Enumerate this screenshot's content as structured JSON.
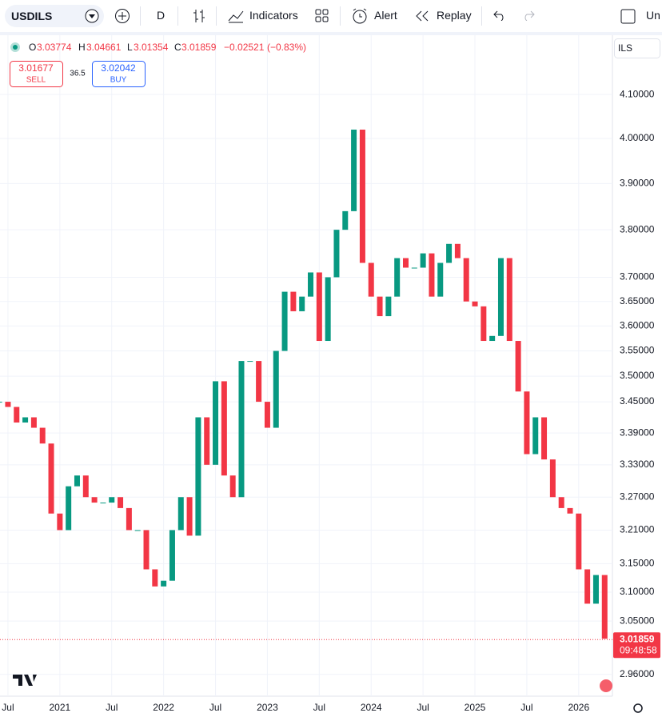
{
  "toolbar": {
    "symbol": "USDILS",
    "interval": "D",
    "indicators": "Indicators",
    "alert": "Alert",
    "replay": "Replay",
    "account": "Un"
  },
  "legend": {
    "open_label": "O",
    "open": 3.03774,
    "high_label": "H",
    "high": 3.04661,
    "low_label": "L",
    "low": 3.01354,
    "close_label": "C",
    "close": 3.01859,
    "change": "−0.02521",
    "change_pct": "(−0.83%)",
    "sell": "3.01677",
    "sell_label": "SELL",
    "spread": 36.5,
    "buy": "3.02042",
    "buy_label": "BUY"
  },
  "currency": "ILS",
  "chart_data": {
    "type": "candlestick",
    "values": [
      3.45,
      3.44,
      3.41,
      3.42,
      3.4,
      3.37,
      3.24,
      3.21,
      3.29,
      3.31,
      3.27,
      3.26,
      3.26,
      3.27,
      3.25,
      3.21,
      3.21,
      3.14,
      3.11,
      3.12,
      3.21,
      3.27,
      3.2,
      3.42,
      3.33,
      3.49,
      3.31,
      3.27,
      3.53,
      3.53,
      3.45,
      3.4,
      3.55,
      3.67,
      3.63,
      3.66,
      3.71,
      3.57,
      3.7,
      3.8,
      3.84,
      4.02,
      3.73,
      3.66,
      3.62,
      3.66,
      3.74,
      3.72,
      3.72,
      3.75,
      3.66,
      3.73,
      3.77,
      3.74,
      3.65,
      3.64,
      3.57,
      3.58,
      3.74,
      3.57,
      3.47,
      3.35,
      3.42,
      3.34,
      3.27,
      3.25,
      3.24,
      3.14,
      3.08,
      3.13,
      3.02
    ],
    "last_price": 3.01859,
    "countdown": "09:48:58",
    "up_color": "#089981",
    "down_color": "#f23645",
    "log_scale": true,
    "grid": true,
    "ylim": [
      2.924,
      4.239
    ],
    "yticks": [
      {
        "value": 4.1,
        "label": "4.10000"
      },
      {
        "value": 4.0,
        "label": "4.00000"
      },
      {
        "value": 3.9,
        "label": "3.90000"
      },
      {
        "value": 3.8,
        "label": "3.80000"
      },
      {
        "value": 3.7,
        "label": "3.70000"
      },
      {
        "value": 3.65,
        "label": "3.65000"
      },
      {
        "value": 3.6,
        "label": "3.60000"
      },
      {
        "value": 3.55,
        "label": "3.55000"
      },
      {
        "value": 3.5,
        "label": "3.50000"
      },
      {
        "value": 3.45,
        "label": "3.45000"
      },
      {
        "value": 3.39,
        "label": "3.39000"
      },
      {
        "value": 3.33,
        "label": "3.33000"
      },
      {
        "value": 3.27,
        "label": "3.27000"
      },
      {
        "value": 3.21,
        "label": "3.21000"
      },
      {
        "value": 3.15,
        "label": "3.15000"
      },
      {
        "value": 3.1,
        "label": "3.10000"
      },
      {
        "value": 3.05,
        "label": "3.05000"
      },
      {
        "value": 2.96,
        "label": "2.96000"
      }
    ],
    "xlim": [
      0.08,
      70.9
    ],
    "xticks": [
      {
        "value": 1,
        "label": "Jul"
      },
      {
        "value": 7,
        "label": "2021"
      },
      {
        "value": 13,
        "label": "Jul"
      },
      {
        "value": 19,
        "label": "2022"
      },
      {
        "value": 25,
        "label": "Jul"
      },
      {
        "value": 31,
        "label": "2023"
      },
      {
        "value": 37,
        "label": "Jul"
      },
      {
        "value": 43,
        "label": "2024"
      },
      {
        "value": 49,
        "label": "Jul"
      },
      {
        "value": 55,
        "label": "2025"
      },
      {
        "value": 61,
        "label": "Jul"
      },
      {
        "value": 67,
        "label": "2026"
      }
    ]
  }
}
